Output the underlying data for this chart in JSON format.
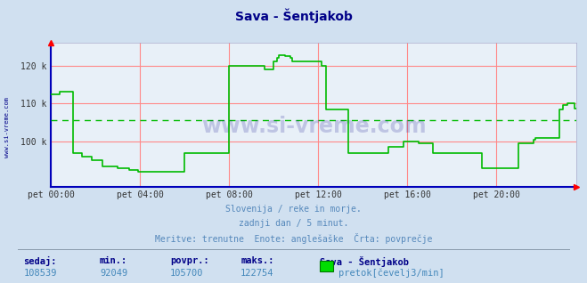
{
  "title": "Sava - Šentjakob",
  "background_color": "#d0e0f0",
  "plot_bg_color": "#e8f0f8",
  "line_color": "#00bb00",
  "avg_line_color": "#00bb00",
  "grid_color": "#ff8888",
  "ylim_min": 88000,
  "ylim_max": 126000,
  "ytick_values": [
    100000,
    110000,
    120000
  ],
  "ytick_labels": [
    "100 k",
    "110 k",
    "120 k"
  ],
  "avg_value": 105700,
  "subtitle1": "Slovenija / reke in morje.",
  "subtitle2": "zadnji dan / 5 minut.",
  "subtitle3": "Meritve: trenutne  Enote: anglešaške  Črta: povprečje",
  "footer_labels": [
    "sedaj:",
    "min.:",
    "povpr.:",
    "maks.:"
  ],
  "footer_values": [
    "108539",
    "92049",
    "105700",
    "122754"
  ],
  "footer_series": "Sava - Šentjakob",
  "footer_legend": "pretok[čevelj3/min]",
  "xtick_labels": [
    "pet 00:00",
    "pet 04:00",
    "pet 08:00",
    "pet 12:00",
    "pet 16:00",
    "pet 20:00"
  ],
  "watermark": "www.si-vreme.com",
  "left_label": "www.si-vreme.com",
  "flow_data": [
    112500,
    112500,
    112500,
    112500,
    112500,
    113000,
    113000,
    113000,
    113000,
    113000,
    113000,
    113000,
    97000,
    97000,
    97000,
    97000,
    97000,
    96000,
    96000,
    96000,
    96000,
    96000,
    95000,
    95000,
    95000,
    95000,
    95000,
    95000,
    93500,
    93500,
    93500,
    93500,
    93500,
    93500,
    93500,
    93500,
    93000,
    93000,
    93000,
    93000,
    93000,
    93000,
    92500,
    92500,
    92500,
    92500,
    92500,
    92100,
    92100,
    92100,
    92100,
    92100,
    92100,
    92100,
    92100,
    92100,
    92049,
    92049,
    92049,
    92049,
    92049,
    92049,
    92049,
    92049,
    92049,
    92049,
    92049,
    92049,
    92049,
    92049,
    92049,
    92049,
    97000,
    97000,
    97000,
    97000,
    97000,
    97000,
    97000,
    97000,
    97000,
    97000,
    97000,
    97000,
    97000,
    97000,
    97000,
    97000,
    97000,
    97000,
    97000,
    97000,
    97000,
    97000,
    97000,
    97000,
    120000,
    120000,
    120000,
    120000,
    120000,
    120000,
    120000,
    120000,
    120000,
    120000,
    120000,
    120000,
    120000,
    120000,
    120000,
    120000,
    120000,
    120000,
    120000,
    119000,
    119000,
    119000,
    119000,
    119000,
    121000,
    121000,
    122000,
    122754,
    122754,
    122754,
    122500,
    122500,
    122500,
    122000,
    121000,
    121000,
    121000,
    121000,
    121000,
    121000,
    121000,
    121000,
    121000,
    121000,
    121000,
    121000,
    121000,
    121000,
    121000,
    121000,
    120000,
    120000,
    108500,
    108500,
    108500,
    108500,
    108500,
    108500,
    108500,
    108500,
    108500,
    108500,
    108500,
    108500,
    97000,
    97000,
    97000,
    97000,
    97000,
    97000,
    97000,
    97000,
    97000,
    97000,
    97000,
    97000,
    97000,
    97000,
    97000,
    97000,
    97000,
    97000,
    97000,
    97000,
    97000,
    97000,
    98500,
    98500,
    98500,
    98500,
    98500,
    98500,
    98500,
    98500,
    100000,
    100000,
    100000,
    100000,
    100000,
    100000,
    100000,
    100000,
    99500,
    99500,
    99500,
    99500,
    99500,
    99500,
    99500,
    99500,
    97000,
    97000,
    97000,
    97000,
    97000,
    97000,
    97000,
    97000,
    97000,
    97000,
    97000,
    97000,
    97000,
    97000,
    97000,
    97000,
    97000,
    97000,
    97000,
    97000,
    97000,
    97000,
    97000,
    97000,
    97000,
    97000,
    93000,
    93000,
    93000,
    93000,
    93000,
    93000,
    93000,
    93000,
    93000,
    93000,
    93000,
    93000,
    93000,
    93000,
    93000,
    93000,
    93000,
    93000,
    93000,
    93000,
    99500,
    99500,
    99500,
    99500,
    99500,
    99500,
    99500,
    99500,
    100500,
    101000,
    101000,
    101000,
    101000,
    101000,
    101000,
    101000,
    101000,
    101000,
    101000,
    101000,
    101000,
    101000,
    108500,
    108500,
    109500,
    109500,
    110000,
    110000,
    110000,
    110000,
    108539,
    108539
  ]
}
